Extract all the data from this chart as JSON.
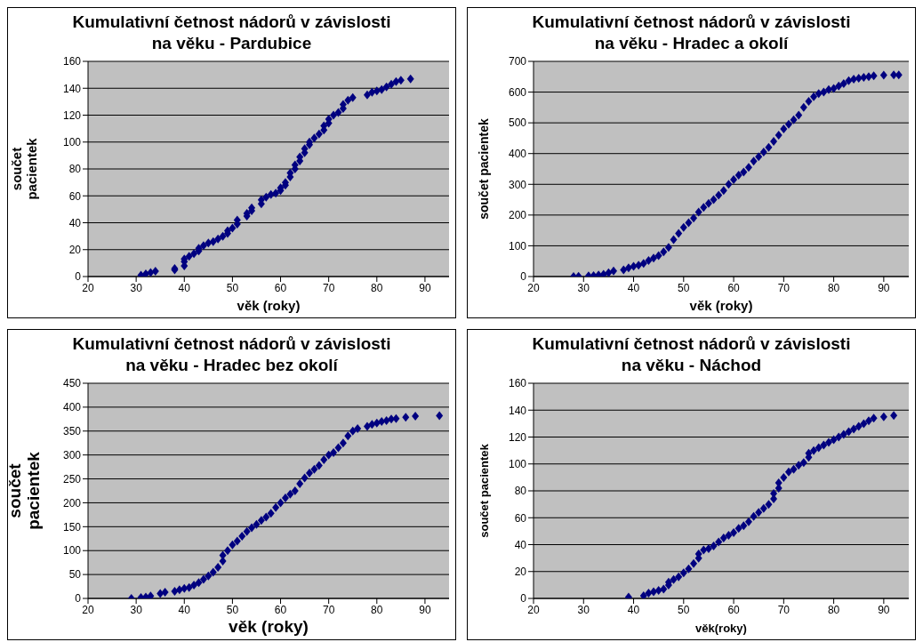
{
  "chart_data": [
    {
      "type": "scatter",
      "title": "Kumulativní četnost nádorů v závislosti na věku - Pardubice",
      "xlabel": "věk (roky)",
      "ylabel": "součet pacientek",
      "xlim": [
        20,
        95
      ],
      "xticks": [
        20,
        30,
        40,
        50,
        60,
        70,
        80,
        90
      ],
      "ylim": [
        0,
        160
      ],
      "yticks": [
        0,
        20,
        40,
        60,
        80,
        100,
        120,
        140,
        160
      ],
      "grid": "y",
      "legend": false,
      "marker": "diamond",
      "series": [
        {
          "color": "#000080",
          "x": [
            31,
            32,
            33,
            34,
            38,
            38,
            40,
            40,
            40,
            41,
            42,
            43,
            43,
            44,
            45,
            46,
            47,
            48,
            49,
            49,
            50,
            51,
            51,
            53,
            53,
            54,
            54,
            56,
            56,
            57,
            58,
            59,
            60,
            60,
            61,
            61,
            62,
            62,
            63,
            63,
            64,
            64,
            65,
            65,
            66,
            66,
            67,
            68,
            69,
            69,
            70,
            70,
            71,
            72,
            73,
            73,
            74,
            75,
            78,
            79,
            80,
            81,
            82,
            83,
            84,
            85,
            87
          ],
          "values": [
            1,
            2,
            3,
            4,
            5,
            6,
            8,
            11,
            13,
            15,
            17,
            19,
            21,
            23,
            25,
            26,
            28,
            30,
            32,
            34,
            36,
            39,
            42,
            45,
            47,
            49,
            51,
            54,
            57,
            59,
            61,
            62,
            64,
            66,
            68,
            70,
            74,
            77,
            80,
            83,
            86,
            89,
            92,
            95,
            98,
            100,
            103,
            106,
            109,
            112,
            114,
            117,
            120,
            122,
            125,
            128,
            131,
            133,
            135,
            137,
            138,
            139,
            141,
            143,
            145,
            146,
            147
          ]
        }
      ]
    },
    {
      "type": "scatter",
      "title": "Kumulativní četnost nádorů v závislosti na věku - Hradec a okolí",
      "xlabel": "věk (roky)",
      "ylabel": "součet pacientek",
      "xlim": [
        20,
        95
      ],
      "xticks": [
        20,
        30,
        40,
        50,
        60,
        70,
        80,
        90
      ],
      "ylim": [
        0,
        700
      ],
      "yticks": [
        0,
        100,
        200,
        300,
        400,
        500,
        600,
        700
      ],
      "grid": "y",
      "legend": false,
      "marker": "diamond",
      "series": [
        {
          "color": "#000080",
          "x": [
            28,
            29,
            31,
            32,
            33,
            34,
            35,
            36,
            38,
            39,
            40,
            41,
            42,
            43,
            44,
            45,
            46,
            47,
            48,
            49,
            50,
            51,
            52,
            53,
            54,
            55,
            56,
            57,
            58,
            59,
            60,
            61,
            62,
            63,
            64,
            65,
            66,
            67,
            68,
            69,
            70,
            71,
            72,
            73,
            74,
            75,
            76,
            77,
            78,
            79,
            80,
            81,
            82,
            83,
            84,
            85,
            86,
            87,
            88,
            90,
            92,
            93
          ],
          "values": [
            0,
            1,
            2,
            3,
            5,
            7,
            12,
            18,
            22,
            28,
            33,
            37,
            43,
            52,
            60,
            68,
            80,
            95,
            120,
            140,
            160,
            175,
            190,
            210,
            225,
            238,
            250,
            265,
            280,
            300,
            315,
            330,
            340,
            355,
            375,
            390,
            405,
            420,
            440,
            460,
            480,
            495,
            510,
            525,
            550,
            570,
            585,
            595,
            600,
            608,
            612,
            620,
            628,
            637,
            642,
            645,
            648,
            650,
            653,
            655,
            656,
            656
          ]
        }
      ]
    },
    {
      "type": "scatter",
      "title": "Kumulativní četnost nádorů v závislosti na věku - Hradec bez okolí",
      "xlabel": "věk (roky)",
      "ylabel": "součet pacientek",
      "xlim": [
        20,
        95
      ],
      "xticks": [
        20,
        30,
        40,
        50,
        60,
        70,
        80,
        90
      ],
      "ylim": [
        0,
        450
      ],
      "yticks": [
        0,
        50,
        100,
        150,
        200,
        250,
        300,
        350,
        400,
        450
      ],
      "grid": "y",
      "legend": false,
      "marker": "diamond",
      "series": [
        {
          "color": "#000080",
          "x": [
            29,
            31,
            32,
            33,
            35,
            36,
            38,
            39,
            40,
            41,
            42,
            43,
            44,
            45,
            46,
            47,
            48,
            48,
            49,
            50,
            51,
            52,
            53,
            54,
            55,
            56,
            57,
            58,
            59,
            60,
            61,
            62,
            63,
            64,
            65,
            66,
            67,
            68,
            69,
            70,
            71,
            72,
            73,
            74,
            75,
            76,
            78,
            79,
            80,
            81,
            82,
            83,
            84,
            86,
            88,
            93
          ],
          "values": [
            0,
            2,
            3,
            5,
            10,
            13,
            15,
            18,
            21,
            23,
            28,
            33,
            40,
            47,
            55,
            65,
            78,
            90,
            100,
            112,
            120,
            130,
            140,
            148,
            155,
            163,
            170,
            178,
            190,
            200,
            210,
            218,
            225,
            240,
            252,
            262,
            270,
            278,
            290,
            300,
            305,
            315,
            325,
            340,
            350,
            355,
            360,
            364,
            367,
            370,
            372,
            375,
            376,
            379,
            381,
            382
          ]
        }
      ]
    },
    {
      "type": "scatter",
      "title": "Kumulativní četnost nádorů v závislosti na věku - Náchod",
      "xlabel": "věk(roky)",
      "ylabel": "součet pacientek",
      "xlim": [
        20,
        95
      ],
      "xticks": [
        20,
        30,
        40,
        50,
        60,
        70,
        80,
        90
      ],
      "ylim": [
        0,
        160
      ],
      "yticks": [
        0,
        20,
        40,
        60,
        80,
        100,
        120,
        140,
        160
      ],
      "grid": "y",
      "legend": false,
      "marker": "diamond",
      "series": [
        {
          "color": "#000080",
          "x": [
            39,
            42,
            43,
            44,
            45,
            46,
            47,
            47,
            48,
            49,
            50,
            51,
            52,
            53,
            53,
            54,
            55,
            56,
            57,
            58,
            59,
            60,
            61,
            62,
            63,
            64,
            65,
            66,
            67,
            68,
            68,
            69,
            69,
            70,
            71,
            72,
            73,
            74,
            75,
            75,
            76,
            77,
            78,
            79,
            80,
            81,
            82,
            83,
            84,
            85,
            86,
            87,
            88,
            90,
            92
          ],
          "values": [
            1,
            2,
            4,
            5,
            6,
            7,
            10,
            12,
            14,
            16,
            19,
            22,
            26,
            30,
            33,
            36,
            37,
            39,
            42,
            45,
            47,
            49,
            52,
            54,
            57,
            61,
            64,
            67,
            70,
            74,
            78,
            82,
            86,
            90,
            94,
            96,
            99,
            101,
            105,
            108,
            110,
            112,
            114,
            116,
            118,
            120,
            122,
            124,
            126,
            128,
            130,
            132,
            134,
            135,
            136
          ]
        }
      ]
    }
  ]
}
